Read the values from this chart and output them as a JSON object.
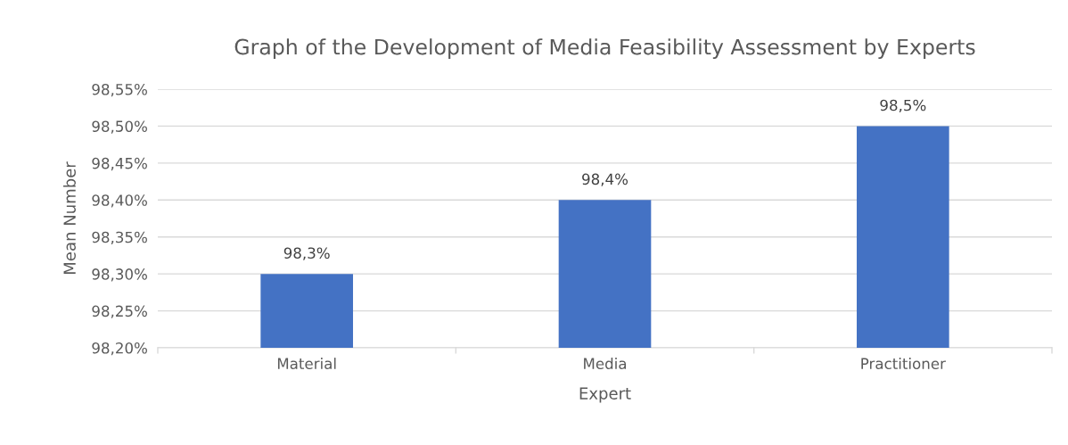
{
  "chart_data": {
    "type": "bar",
    "title": "Graph of the Development of Media Feasibility Assessment by Experts",
    "xlabel": "Expert",
    "ylabel": "Mean Number",
    "categories": [
      "Material",
      "Media",
      "Practitioner"
    ],
    "values": [
      98.3,
      98.4,
      98.5
    ],
    "value_labels": [
      "98,3%",
      "98,4%",
      "98,5%"
    ],
    "color": "#4472c4",
    "ylim": [
      98.2,
      98.55
    ],
    "yticks": [
      {
        "value": 98.2,
        "label": "98,20%"
      },
      {
        "value": 98.25,
        "label": "98,25%"
      },
      {
        "value": 98.3,
        "label": "98,30%"
      },
      {
        "value": 98.35,
        "label": "98,35%"
      },
      {
        "value": 98.4,
        "label": "98,40%"
      },
      {
        "value": 98.45,
        "label": "98,45%"
      },
      {
        "value": 98.5,
        "label": "98,50%"
      },
      {
        "value": 98.55,
        "label": "98,55%"
      }
    ],
    "grid": "y"
  }
}
